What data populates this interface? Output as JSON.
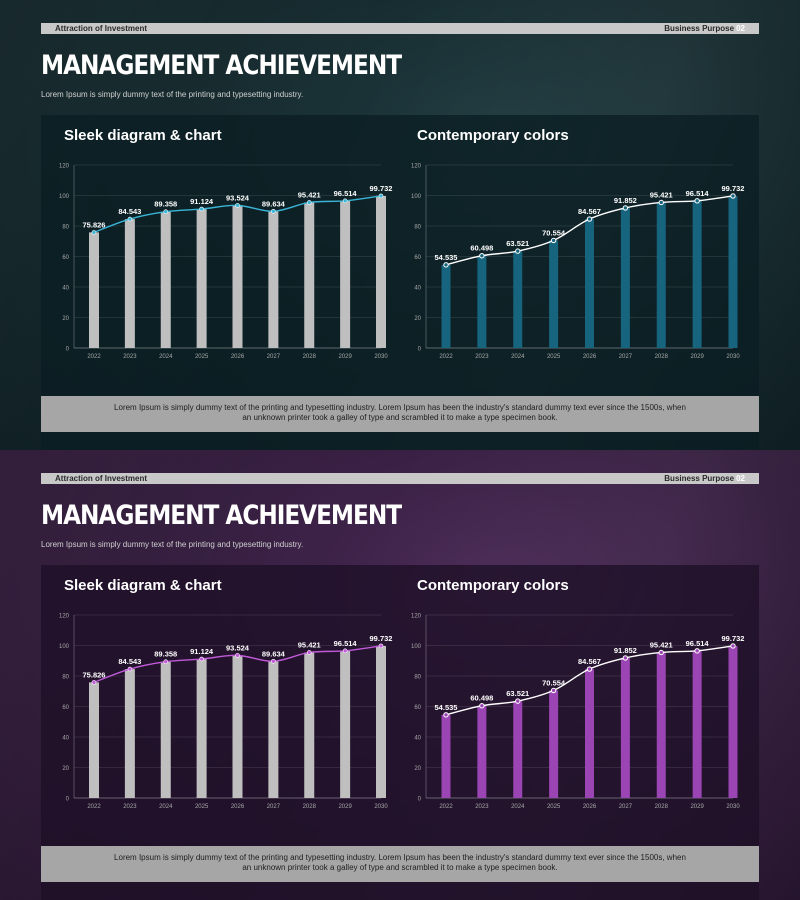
{
  "slides": [
    {
      "theme": "teal",
      "header": {
        "left": "Attraction of Investment",
        "right": "Business Purpose",
        "page": "02"
      },
      "title": "MANAGEMENT ACHIEVEMENT",
      "subtitle": "Lorem Ipsum is simply dummy text of the printing and typesetting industry.",
      "footer": {
        "line1": "Lorem Ipsum is simply dummy text of the printing and typesetting industry. Lorem Ipsum has been the industry's standard dummy text ever since the 1500s, when",
        "line2": "an unknown printer took a galley of type and scrambled it to make a type specimen book."
      },
      "colors": {
        "left_line": "#3bb4d6",
        "right_bar": "#17647e",
        "gray_bar": "#bfbfbf"
      }
    },
    {
      "theme": "purple",
      "header": {
        "left": "Attraction of Investment",
        "right": "Business Purpose",
        "page": "02"
      },
      "title": "MANAGEMENT ACHIEVEMENT",
      "subtitle": "Lorem Ipsum is simply dummy text of the printing and typesetting industry.",
      "footer": {
        "line1": "Lorem Ipsum is simply dummy text of the printing and typesetting industry. Lorem Ipsum has been the industry's standard dummy text ever since the 1500s, when",
        "line2": "an unknown printer took a galley of type and scrambled it to make a type specimen book."
      },
      "colors": {
        "left_line": "#c05ad8",
        "right_bar": "#9b44b3",
        "gray_bar": "#bfbfbf"
      }
    }
  ],
  "chart_data": [
    {
      "type": "bar",
      "title": "Sleek diagram & chart",
      "categories": [
        "2022",
        "2023",
        "2024",
        "2025",
        "2026",
        "2027",
        "2028",
        "2029",
        "2030"
      ],
      "values": [
        75.826,
        84.543,
        89.358,
        91.124,
        93.524,
        89.634,
        95.421,
        96.514,
        99.732
      ],
      "labels": [
        "75.826",
        "84.543",
        "89.358",
        "91.124",
        "93.524",
        "89.634",
        "95.421",
        "96.514",
        "99.732"
      ],
      "overlay": "line",
      "ylim": [
        0,
        120
      ],
      "yticks": [
        "0",
        "20",
        "40",
        "60",
        "80",
        "100",
        "120"
      ],
      "grid": true
    },
    {
      "type": "bar",
      "title": "Contemporary colors",
      "categories": [
        "2022",
        "2023",
        "2024",
        "2025",
        "2026",
        "2027",
        "2028",
        "2029",
        "2030"
      ],
      "values": [
        54.535,
        60.498,
        63.521,
        70.554,
        84.567,
        91.852,
        95.421,
        96.514,
        99.732
      ],
      "labels": [
        "54.535",
        "60.498",
        "63.521",
        "70.554",
        "84.567",
        "91.852",
        "95.421",
        "96.514",
        "99.732"
      ],
      "overlay": "line",
      "ylim": [
        0,
        120
      ],
      "yticks": [
        "0",
        "20",
        "40",
        "60",
        "80",
        "100",
        "120"
      ],
      "grid": true
    }
  ]
}
